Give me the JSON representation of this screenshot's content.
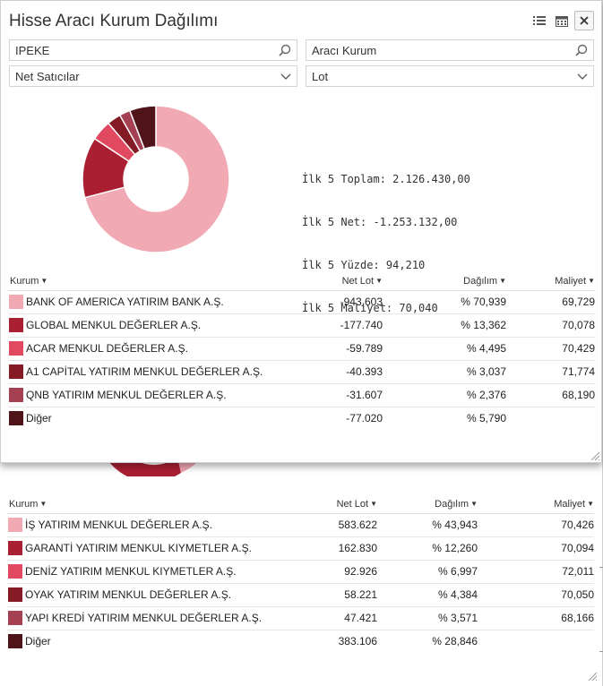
{
  "colors": {
    "slices": [
      "#f1a9b4",
      "#ab1f32",
      "#e0495f",
      "#841a24",
      "#a53f52",
      "#4e141a"
    ]
  },
  "front": {
    "title": "Hisse Aracı Kurum Dağılımı",
    "toolbar": {
      "list_icon": "list-icon",
      "calendar_icon": "calendar-icon",
      "close_icon": "close-icon"
    },
    "symbol_input": "IPEKE",
    "broker_input": "Aracı Kurum",
    "filter_select": "Net Satıcılar",
    "unit_select": "Lot",
    "summary": {
      "toplam": "İlk 5 Toplam: 2.126.430,00",
      "net": "İlk 5 Net: -1.253.132,00",
      "yuzde": "İlk 5 Yüzde: 94,210",
      "maliyet": "İlk 5 Maliyet: 70,040"
    },
    "columns": {
      "kurum": "Kurum",
      "net_lot": "Net Lot",
      "dagilim": "Dağılım",
      "maliyet": "Maliyet"
    },
    "rows": [
      {
        "name": "BANK OF AMERICA YATIRIM BANK A.Ş.",
        "net_lot": "-943.603",
        "dagilim": "% 70,939",
        "maliyet": "69,729"
      },
      {
        "name": "GLOBAL MENKUL DEĞERLER A.Ş.",
        "net_lot": "-177.740",
        "dagilim": "% 13,362",
        "maliyet": "70,078"
      },
      {
        "name": "ACAR MENKUL DEĞERLER A.Ş.",
        "net_lot": "-59.789",
        "dagilim": "% 4,495",
        "maliyet": "70,429"
      },
      {
        "name": "A1 CAPİTAL YATIRIM MENKUL DEĞERLER A.Ş.",
        "net_lot": "-40.393",
        "dagilim": "% 3,037",
        "maliyet": "71,774"
      },
      {
        "name": "QNB YATIRIM MENKUL DEĞERLER A.Ş.",
        "net_lot": "-31.607",
        "dagilim": "% 2,376",
        "maliyet": "68,190"
      },
      {
        "name": "Diğer",
        "net_lot": "-77.020",
        "dagilim": "% 5,790",
        "maliyet": ""
      }
    ]
  },
  "back": {
    "columns": {
      "kurum": "Kurum",
      "net_lot": "Net Lot",
      "dagilim": "Dağılım",
      "maliyet": "Maliyet"
    },
    "rows": [
      {
        "name": "İŞ YATIRIM MENKUL DEĞERLER A.Ş.",
        "net_lot": "583.622",
        "dagilim": "% 43,943",
        "maliyet": "70,426"
      },
      {
        "name": "GARANTİ YATIRIM MENKUL KIYMETLER A.Ş.",
        "net_lot": "162.830",
        "dagilim": "% 12,260",
        "maliyet": "70,094"
      },
      {
        "name": "DENİZ YATIRIM MENKUL KIYMETLER A.Ş.",
        "net_lot": "92.926",
        "dagilim": "% 6,997",
        "maliyet": "72,011"
      },
      {
        "name": "OYAK YATIRIM MENKUL DEĞERLER A.Ş.",
        "net_lot": "58.221",
        "dagilim": "% 4,384",
        "maliyet": "70,050"
      },
      {
        "name": "YAPI KREDİ YATIRIM MENKUL DEĞERLER A.Ş.",
        "net_lot": "47.421",
        "dagilim": "% 3,571",
        "maliyet": "68,166"
      },
      {
        "name": "Diğer",
        "net_lot": "383.106",
        "dagilim": "% 28,846",
        "maliyet": ""
      }
    ]
  }
}
